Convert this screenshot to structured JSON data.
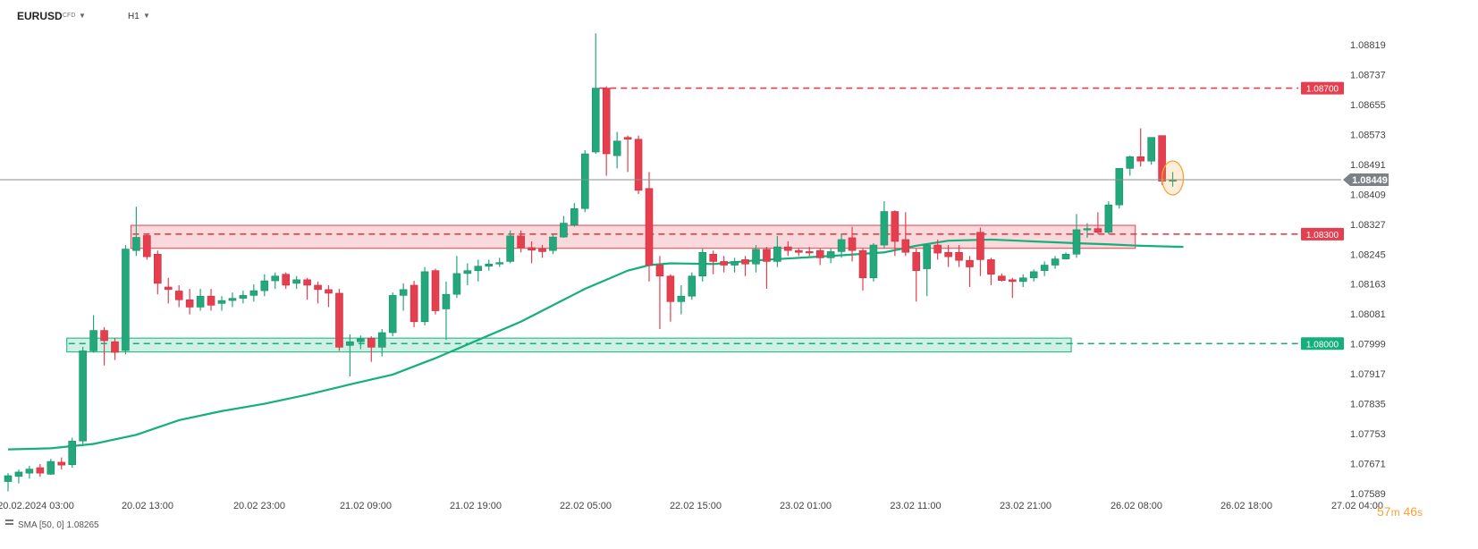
{
  "header": {
    "symbol": "EURUSD",
    "instrument_type": "CFD",
    "timeframe": "H1"
  },
  "countdown": {
    "minutes": "57",
    "minutes_unit": "m",
    "seconds": "46",
    "seconds_unit": "s"
  },
  "indicator": {
    "label": "SMA [50, 0] 1.08265"
  },
  "colors": {
    "up": "#22a87a",
    "down": "#e53f4f",
    "sma": "#14b07c",
    "resistance": "#e53f4f",
    "support": "#14b07c",
    "price_line": "#8a8f94",
    "price_tag": "#7b8187",
    "alert": "#f2a33a"
  },
  "chart_data": {
    "type": "candlestick",
    "title": "",
    "y_range": [
      1.07589,
      1.0886
    ],
    "y_ticks": [
      "1.08819",
      "1.08737",
      "1.08655",
      "1.08573",
      "1.08491",
      "1.08409",
      "1.08327",
      "1.08245",
      "1.08163",
      "1.08081",
      "1.07999",
      "1.07917",
      "1.07835",
      "1.07753",
      "1.07671",
      "1.07589"
    ],
    "x_tick_labels": [
      "20.02.2024  03:00",
      "20.02  13:00",
      "20.02  23:00",
      "21.02  09:00",
      "21.02  19:00",
      "22.02  05:00",
      "22.02  15:00",
      "23.02  01:00",
      "23.02  11:00",
      "23.02  21:00",
      "26.02  08:00",
      "26.02  18:00",
      "27.02  04:00"
    ],
    "current_price": "1.08449",
    "levels": [
      {
        "price": "1.08700",
        "kind": "resistance"
      },
      {
        "price": "1.08300",
        "kind": "resistance"
      },
      {
        "price": "1.08000",
        "kind": "support"
      }
    ],
    "zones": [
      {
        "from": 1.08261,
        "to": 1.08324,
        "kind": "resistance",
        "start_index": 12,
        "end_index": 105
      },
      {
        "from": 1.07977,
        "to": 1.08015,
        "kind": "support",
        "start_index": 6,
        "end_index": 99
      }
    ],
    "candles": [
      [
        1.07622,
        1.07645,
        1.07595,
        1.07638
      ],
      [
        1.07636,
        1.07655,
        1.07617,
        1.07648
      ],
      [
        1.07645,
        1.07665,
        1.0763,
        1.07656
      ],
      [
        1.0766,
        1.0767,
        1.07635,
        1.07645
      ],
      [
        1.07642,
        1.07684,
        1.0764,
        1.07677
      ],
      [
        1.07675,
        1.07688,
        1.07655,
        1.07667
      ],
      [
        1.07668,
        1.07742,
        1.0766,
        1.07733
      ],
      [
        1.07733,
        1.07991,
        1.07725,
        1.0798
      ],
      [
        1.0798,
        1.08078,
        1.07975,
        1.08036
      ],
      [
        1.08036,
        1.08045,
        1.0794,
        1.08008
      ],
      [
        1.08005,
        1.08015,
        1.07955,
        1.07976
      ],
      [
        1.07981,
        1.0827,
        1.0797,
        1.08259
      ],
      [
        1.08255,
        1.08375,
        1.0824,
        1.08291
      ],
      [
        1.08296,
        1.083,
        1.0823,
        1.08238
      ],
      [
        1.08245,
        1.08255,
        1.08135,
        1.08165
      ],
      [
        1.08155,
        1.0818,
        1.0811,
        1.08148
      ],
      [
        1.08144,
        1.0816,
        1.081,
        1.0812
      ],
      [
        1.0812,
        1.0815,
        1.0808,
        1.081
      ],
      [
        1.081,
        1.0815,
        1.0809,
        1.0813
      ],
      [
        1.0813,
        1.0815,
        1.0809,
        1.08105
      ],
      [
        1.0811,
        1.0813,
        1.0809,
        1.08118
      ],
      [
        1.08118,
        1.0814,
        1.081,
        1.08124
      ],
      [
        1.08124,
        1.08145,
        1.0811,
        1.08132
      ],
      [
        1.08132,
        1.08162,
        1.08115,
        1.08145
      ],
      [
        1.08145,
        1.0819,
        1.0813,
        1.08172
      ],
      [
        1.08172,
        1.08195,
        1.0815,
        1.08185
      ],
      [
        1.0819,
        1.08195,
        1.0815,
        1.0816
      ],
      [
        1.08165,
        1.08185,
        1.0815,
        1.08175
      ],
      [
        1.08175,
        1.0818,
        1.0812,
        1.0816
      ],
      [
        1.0816,
        1.0817,
        1.0811,
        1.08148
      ],
      [
        1.08148,
        1.0816,
        1.081,
        1.08138
      ],
      [
        1.08138,
        1.0815,
        1.0798,
        1.0799
      ],
      [
        1.07995,
        1.08025,
        1.0791,
        1.08005
      ],
      [
        1.08005,
        1.08022,
        1.07985,
        1.08013
      ],
      [
        1.08015,
        1.0802,
        1.0795,
        1.0799
      ],
      [
        1.0799,
        1.0804,
        1.07965,
        1.0803
      ],
      [
        1.0803,
        1.0814,
        1.0802,
        1.08132
      ],
      [
        1.08132,
        1.08165,
        1.0809,
        1.08148
      ],
      [
        1.0816,
        1.08172,
        1.08045,
        1.0806
      ],
      [
        1.0806,
        1.0821,
        1.0805,
        1.08197
      ],
      [
        1.082,
        1.08205,
        1.0808,
        1.0809
      ],
      [
        1.08095,
        1.0817,
        1.0801,
        1.08135
      ],
      [
        1.08135,
        1.0824,
        1.08125,
        1.08192
      ],
      [
        1.08192,
        1.0822,
        1.0816,
        1.082
      ],
      [
        1.082,
        1.0823,
        1.0817,
        1.08212
      ],
      [
        1.08212,
        1.0823,
        1.082,
        1.08218
      ],
      [
        1.08218,
        1.08235,
        1.0821,
        1.08222
      ],
      [
        1.08225,
        1.0831,
        1.0822,
        1.08295
      ],
      [
        1.08295,
        1.0831,
        1.0825,
        1.08263
      ],
      [
        1.08263,
        1.0828,
        1.0822,
        1.08256
      ],
      [
        1.0826,
        1.0827,
        1.08235,
        1.08252
      ],
      [
        1.08255,
        1.083,
        1.08245,
        1.08292
      ],
      [
        1.08292,
        1.0835,
        1.0829,
        1.0833
      ],
      [
        1.08325,
        1.08385,
        1.0832,
        1.0837
      ],
      [
        1.0837,
        1.0853,
        1.0836,
        1.0852
      ],
      [
        1.08525,
        1.0885,
        1.0852,
        1.087
      ],
      [
        1.087,
        1.08705,
        1.0846,
        1.0852
      ],
      [
        1.08515,
        1.0858,
        1.0848,
        1.08555
      ],
      [
        1.08565,
        1.0857,
        1.0847,
        1.0856
      ],
      [
        1.0856,
        1.0857,
        1.0841,
        1.0842
      ],
      [
        1.08425,
        1.0847,
        1.0817,
        1.08215
      ],
      [
        1.08215,
        1.0824,
        1.0804,
        1.08185
      ],
      [
        1.08185,
        1.0819,
        1.0806,
        1.08115
      ],
      [
        1.08115,
        1.0816,
        1.0808,
        1.0813
      ],
      [
        1.0813,
        1.08195,
        1.0812,
        1.08185
      ],
      [
        1.08185,
        1.0826,
        1.0817,
        1.0825
      ],
      [
        1.08245,
        1.08255,
        1.0819,
        1.08225
      ],
      [
        1.08225,
        1.0824,
        1.08195,
        1.08215
      ],
      [
        1.08215,
        1.08235,
        1.08195,
        1.08225
      ],
      [
        1.0823,
        1.0824,
        1.08185,
        1.08218
      ],
      [
        1.08218,
        1.0827,
        1.08195,
        1.08258
      ],
      [
        1.08258,
        1.08265,
        1.0815,
        1.08225
      ],
      [
        1.08225,
        1.08295,
        1.0821,
        1.08265
      ],
      [
        1.08265,
        1.0828,
        1.0824,
        1.08255
      ],
      [
        1.08255,
        1.0826,
        1.0824,
        1.0825
      ],
      [
        1.08252,
        1.08265,
        1.0824,
        1.0825
      ],
      [
        1.08255,
        1.08262,
        1.08215,
        1.08235
      ],
      [
        1.08235,
        1.0826,
        1.0822,
        1.08252
      ],
      [
        1.08252,
        1.083,
        1.08235,
        1.08285
      ],
      [
        1.0829,
        1.0832,
        1.08225,
        1.08255
      ],
      [
        1.08255,
        1.0826,
        1.08145,
        1.0818
      ],
      [
        1.0818,
        1.08275,
        1.0817,
        1.0827
      ],
      [
        1.0827,
        1.0839,
        1.0826,
        1.08362
      ],
      [
        1.08362,
        1.08365,
        1.0824,
        1.0828
      ],
      [
        1.08285,
        1.0836,
        1.0824,
        1.0825
      ],
      [
        1.0825,
        1.0826,
        1.08115,
        1.082
      ],
      [
        1.08205,
        1.08275,
        1.0813,
        1.0827
      ],
      [
        1.0827,
        1.08285,
        1.0823,
        1.08248
      ],
      [
        1.0825,
        1.0827,
        1.0821,
        1.08238
      ],
      [
        1.0825,
        1.0827,
        1.0821,
        1.08228
      ],
      [
        1.08228,
        1.0824,
        1.08155,
        1.0821
      ],
      [
        1.08305,
        1.08318,
        1.08185,
        1.0823
      ],
      [
        1.0823,
        1.08235,
        1.0816,
        1.0819
      ],
      [
        1.08185,
        1.08192,
        1.0817,
        1.08173
      ],
      [
        1.08175,
        1.0818,
        1.08125,
        1.0817
      ],
      [
        1.0817,
        1.0819,
        1.08155,
        1.0818
      ],
      [
        1.0818,
        1.08203,
        1.0817,
        1.08197
      ],
      [
        1.082,
        1.08225,
        1.08185,
        1.08215
      ],
      [
        1.08215,
        1.0824,
        1.08205,
        1.08232
      ],
      [
        1.08232,
        1.0825,
        1.0823,
        1.08245
      ],
      [
        1.08245,
        1.08355,
        1.08235,
        1.08312
      ],
      [
        1.08312,
        1.0833,
        1.0829,
        1.08315
      ],
      [
        1.08315,
        1.0836,
        1.083,
        1.08305
      ],
      [
        1.08305,
        1.0839,
        1.083,
        1.0838
      ],
      [
        1.0838,
        1.0848,
        1.0837,
        1.0848
      ],
      [
        1.0848,
        1.08515,
        1.0846,
        1.08512
      ],
      [
        1.08512,
        1.0859,
        1.08485,
        1.085
      ],
      [
        1.085,
        1.08565,
        1.0849,
        1.08565
      ],
      [
        1.0857,
        1.0857,
        1.08435,
        1.08445
      ],
      [
        1.08445,
        1.0847,
        1.0843,
        1.08449
      ]
    ],
    "sma": [
      [
        0,
        1.0771
      ],
      [
        4,
        1.07713
      ],
      [
        8,
        1.07725
      ],
      [
        12,
        1.0775
      ],
      [
        16,
        1.0779
      ],
      [
        20,
        1.07815
      ],
      [
        24,
        1.07835
      ],
      [
        28,
        1.0786
      ],
      [
        32,
        1.07888
      ],
      [
        36,
        1.07915
      ],
      [
        40,
        1.0796
      ],
      [
        44,
        1.0801
      ],
      [
        48,
        1.0806
      ],
      [
        52,
        1.0812
      ],
      [
        54,
        1.0815
      ],
      [
        56,
        1.08175
      ],
      [
        58,
        1.082
      ],
      [
        60,
        1.08215
      ],
      [
        62,
        1.0822
      ],
      [
        66,
        1.08218
      ],
      [
        70,
        1.08228
      ],
      [
        74,
        1.08235
      ],
      [
        78,
        1.08242
      ],
      [
        82,
        1.0825
      ],
      [
        85,
        1.08268
      ],
      [
        88,
        1.08282
      ],
      [
        92,
        1.08285
      ],
      [
        96,
        1.0828
      ],
      [
        100,
        1.08275
      ],
      [
        103,
        1.08272
      ],
      [
        106,
        1.08268
      ],
      [
        110,
        1.08265
      ]
    ]
  }
}
